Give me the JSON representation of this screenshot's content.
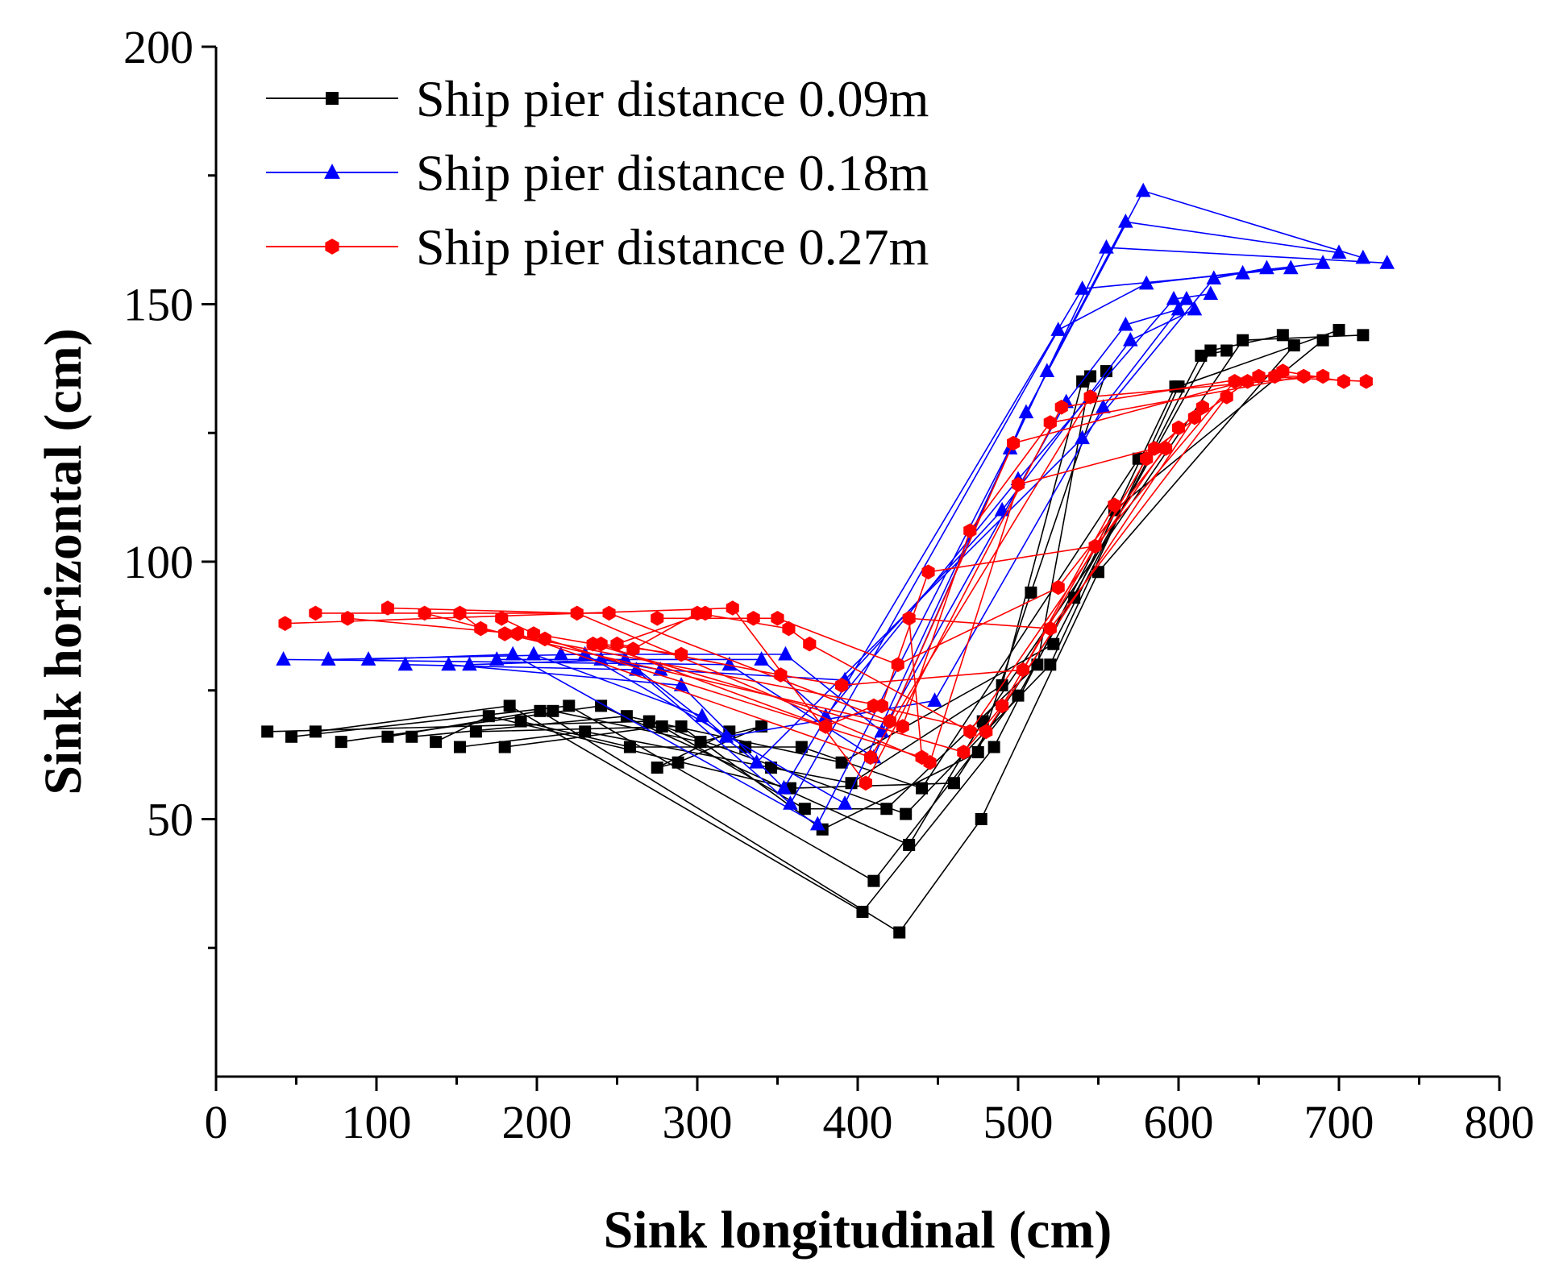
{
  "chart_data": {
    "type": "scatter",
    "title": "",
    "xlabel": "Sink longitudinal (cm)",
    "ylabel": "Sink horizontal (cm)",
    "xlim": [
      0,
      800
    ],
    "ylim": [
      0,
      200
    ],
    "xticks": [
      0,
      100,
      200,
      300,
      400,
      500,
      600,
      700,
      800
    ],
    "yticks": [
      50,
      100,
      150,
      200
    ],
    "grid": false,
    "legend_position": "top-left",
    "series": [
      {
        "name": "Ship pier distance 0.09m",
        "color": "#000000",
        "marker": "square",
        "tracks": [
          [
            [
              32,
              67
            ],
            [
              270,
              69
            ],
            [
              430,
              51
            ],
            [
              520,
              80
            ],
            [
              600,
              134
            ],
            [
              700,
              145
            ]
          ],
          [
            [
              47,
              66
            ],
            [
              220,
              72
            ],
            [
              410,
              38
            ],
            [
              500,
              74
            ],
            [
              620,
              141
            ],
            [
              665,
              144
            ]
          ],
          [
            [
              62,
              67
            ],
            [
              183,
              72
            ],
            [
              403,
              32
            ],
            [
              485,
              64
            ],
            [
              560,
              110
            ],
            [
              690,
              143
            ]
          ],
          [
            [
              78,
              65
            ],
            [
              240,
              72
            ],
            [
              432,
              45
            ],
            [
              478,
              69
            ],
            [
              640,
              143
            ],
            [
              715,
              144
            ]
          ],
          [
            [
              107,
              66
            ],
            [
              202,
              71
            ],
            [
              426,
              28
            ],
            [
              477,
              50
            ],
            [
              550,
              98
            ],
            [
              672,
              142
            ]
          ],
          [
            [
              122,
              66
            ],
            [
              256,
              70
            ],
            [
              390,
              61
            ],
            [
              522,
              84
            ],
            [
              614,
              140
            ],
            [
              630,
              141
            ]
          ],
          [
            [
              137,
              65
            ],
            [
              170,
              70
            ],
            [
              358,
              56
            ],
            [
              460,
              57
            ],
            [
              535,
              93
            ],
            [
              598,
              134
            ]
          ],
          [
            [
              152,
              64
            ],
            [
              230,
              67
            ],
            [
              346,
              60
            ],
            [
              396,
              57
            ],
            [
              490,
              76
            ],
            [
              540,
              135
            ]
          ],
          [
            [
              162,
              67
            ],
            [
              290,
              68
            ],
            [
              378,
              48
            ],
            [
              475,
              63
            ],
            [
              508,
              94
            ],
            [
              555,
              137
            ]
          ],
          [
            [
              180,
              64
            ],
            [
              278,
              68
            ],
            [
              367,
              52
            ],
            [
              418,
              52
            ],
            [
              512,
              80
            ],
            [
              545,
              136
            ]
          ],
          [
            [
              190,
              69
            ],
            [
              258,
              64
            ],
            [
              330,
              64
            ],
            [
              365,
              64
            ],
            [
              440,
              56
            ],
            [
              575,
              120
            ]
          ],
          [
            [
              210,
              71
            ],
            [
              302,
              65
            ],
            [
              340,
              68
            ],
            [
              288,
              61
            ],
            [
              275,
              60
            ],
            [
              320,
              67
            ]
          ]
        ]
      },
      {
        "name": "Ship pier distance 0.18m",
        "color": "#0000FF",
        "marker": "triangle",
        "tracks": [
          [
            [
              42,
              81
            ],
            [
              320,
              80
            ],
            [
              410,
              62
            ],
            [
              505,
              129
            ],
            [
              578,
              172
            ],
            [
              715,
              159
            ]
          ],
          [
            [
              70,
              81
            ],
            [
              230,
              82
            ],
            [
              392,
              53
            ],
            [
              518,
              137
            ],
            [
              567,
              166
            ],
            [
              700,
              160
            ]
          ],
          [
            [
              95,
              81
            ],
            [
              185,
              82
            ],
            [
              375,
              49
            ],
            [
              495,
              122
            ],
            [
              555,
              161
            ],
            [
              730,
              158
            ]
          ],
          [
            [
              118,
              80
            ],
            [
              262,
              79
            ],
            [
              358,
              53
            ],
            [
              525,
              145
            ],
            [
              580,
              154
            ],
            [
              690,
              158
            ]
          ],
          [
            [
              145,
              80
            ],
            [
              290,
              76
            ],
            [
              354,
              56
            ],
            [
              540,
              153
            ],
            [
              640,
              156
            ],
            [
              670,
              157
            ]
          ],
          [
            [
              158,
              80
            ],
            [
              255,
              81
            ],
            [
              337,
              61
            ],
            [
              540,
              124
            ],
            [
              622,
              155
            ],
            [
              655,
              157
            ]
          ],
          [
            [
              175,
              81
            ],
            [
              340,
              81
            ],
            [
              380,
              70
            ],
            [
              500,
              116
            ],
            [
              597,
              151
            ],
            [
              620,
              152
            ]
          ],
          [
            [
              198,
              82
            ],
            [
              303,
              70
            ],
            [
              318,
              66
            ],
            [
              448,
              73
            ],
            [
              553,
              130
            ],
            [
              605,
              151
            ]
          ],
          [
            [
              215,
              82
            ],
            [
              355,
              82
            ],
            [
              415,
              67
            ],
            [
              530,
              131
            ],
            [
              567,
              146
            ],
            [
              600,
              149
            ]
          ],
          [
            [
              240,
              81
            ],
            [
              277,
              79
            ],
            [
              392,
              77
            ],
            [
              490,
              110
            ],
            [
              570,
              143
            ],
            [
              610,
              149
            ]
          ]
        ]
      },
      {
        "name": "Ship pier distance 0.27m",
        "color": "#FF0000",
        "marker": "hexagon",
        "tracks": [
          [
            [
              43,
              88
            ],
            [
              322,
              91
            ],
            [
              405,
              57
            ],
            [
              527,
              130
            ],
            [
              650,
              136
            ],
            [
              717,
              135
            ]
          ],
          [
            [
              62,
              90
            ],
            [
              245,
              90
            ],
            [
              420,
              69
            ],
            [
              497,
              123
            ],
            [
              665,
              137
            ],
            [
              703,
              135
            ]
          ],
          [
            [
              82,
              89
            ],
            [
              188,
              86
            ],
            [
              408,
              62
            ],
            [
              545,
              132
            ],
            [
              690,
              136
            ],
            [
              660,
              136
            ]
          ],
          [
            [
              107,
              91
            ],
            [
              225,
              90
            ],
            [
              445,
              61
            ],
            [
              500,
              115
            ],
            [
              585,
              122
            ],
            [
              643,
              135
            ]
          ],
          [
            [
              130,
              90
            ],
            [
              180,
              86
            ],
            [
              428,
              68
            ],
            [
              470,
              106
            ],
            [
              520,
              127
            ],
            [
              678,
              136
            ]
          ],
          [
            [
              152,
              90
            ],
            [
              165,
              87
            ],
            [
              415,
              72
            ],
            [
              444,
              98
            ],
            [
              548,
              103
            ],
            [
              635,
              135
            ]
          ],
          [
            [
              178,
              89
            ],
            [
              205,
              85
            ],
            [
              440,
              62
            ],
            [
              432,
              89
            ],
            [
              520,
              87
            ],
            [
              630,
              132
            ]
          ],
          [
            [
              198,
              86
            ],
            [
              235,
              84
            ],
            [
              466,
              63
            ],
            [
              490,
              72
            ],
            [
              580,
              120
            ],
            [
              615,
              130
            ]
          ],
          [
            [
              260,
              83
            ],
            [
              300,
              90
            ],
            [
              357,
              87
            ],
            [
              370,
              84
            ],
            [
              470,
              67
            ],
            [
              600,
              126
            ]
          ],
          [
            [
              275,
              89
            ],
            [
              335,
              89
            ],
            [
              350,
              89
            ],
            [
              425,
              80
            ],
            [
              525,
              95
            ],
            [
              592,
              122
            ]
          ],
          [
            [
              305,
              90
            ],
            [
              250,
              84
            ],
            [
              352,
              78
            ],
            [
              390,
              76
            ],
            [
              503,
              79
            ],
            [
              560,
              111
            ]
          ],
          [
            [
              290,
              82
            ],
            [
              240,
              84
            ],
            [
              380,
              68
            ],
            [
              410,
              72
            ],
            [
              480,
              67
            ],
            [
              610,
              128
            ]
          ]
        ]
      }
    ]
  }
}
